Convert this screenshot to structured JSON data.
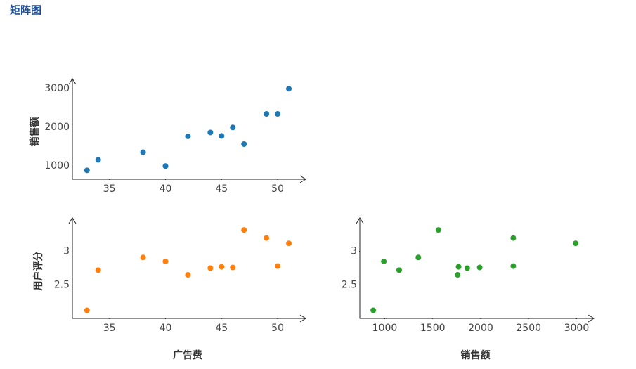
{
  "title": "矩阵图",
  "chart_data": [
    {
      "type": "scatter",
      "ylabel": "销售额",
      "x": [
        33,
        34,
        38,
        40,
        42,
        44,
        45,
        46,
        47,
        49,
        50,
        51
      ],
      "values": [
        880,
        1150,
        1350,
        990,
        1760,
        1860,
        1770,
        1990,
        1560,
        2340,
        2340,
        2990
      ],
      "color": "#1f77b4",
      "xlim": [
        31.7,
        52.5
      ],
      "ylim": [
        650,
        3250
      ],
      "xticks": [
        35,
        40,
        45,
        50
      ],
      "yticks": [
        1000,
        2000,
        3000
      ]
    },
    {
      "type": "scatter",
      "ylabel": "用户评分",
      "xlabel": "广告费",
      "x": [
        33,
        34,
        38,
        40,
        42,
        44,
        45,
        46,
        47,
        49,
        50,
        51
      ],
      "values": [
        2.12,
        2.72,
        2.91,
        2.85,
        2.65,
        2.75,
        2.77,
        2.76,
        3.32,
        3.2,
        2.78,
        3.12
      ],
      "color": "#ff7f0e",
      "xlim": [
        31.7,
        52.5
      ],
      "ylim": [
        2.0,
        3.5
      ],
      "xticks": [
        35,
        40,
        45,
        50
      ],
      "yticks": [
        2.5,
        3
      ]
    },
    {
      "type": "scatter",
      "xlabel": "销售额",
      "x": [
        880,
        1150,
        1350,
        990,
        1760,
        1860,
        1770,
        1990,
        1560,
        2340,
        2340,
        2990
      ],
      "values": [
        2.12,
        2.72,
        2.91,
        2.85,
        2.65,
        2.75,
        2.77,
        2.76,
        3.32,
        3.2,
        2.78,
        3.12
      ],
      "color": "#2ca02c",
      "xlim": [
        740,
        3180
      ],
      "ylim": [
        2.0,
        3.5
      ],
      "xticks": [
        1000,
        1500,
        2000,
        2500,
        3000
      ],
      "yticks": [
        2.5,
        3
      ]
    }
  ]
}
